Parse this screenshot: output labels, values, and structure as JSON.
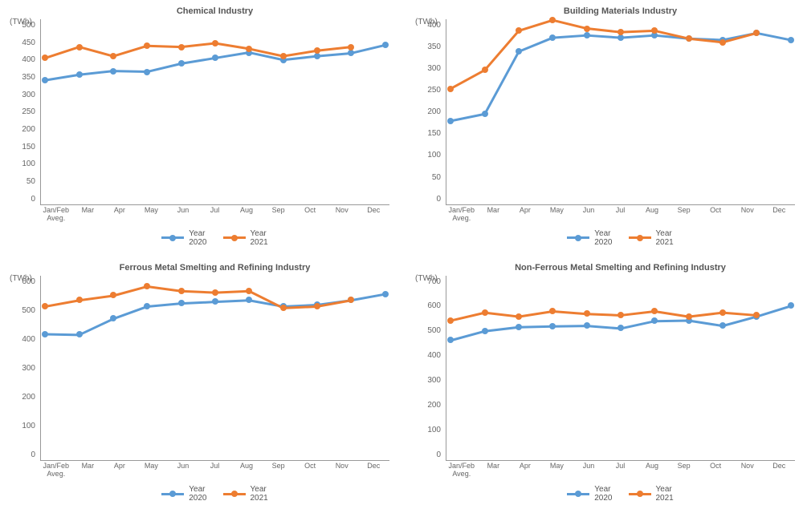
{
  "colors": {
    "series2020": "#5b9bd5",
    "series2021": "#ed7d31",
    "axis": "#999999",
    "text": "#666666",
    "bg": "#ffffff"
  },
  "lineWidth": 3,
  "markerRadius": 4,
  "fontSizes": {
    "title": 11,
    "axis": 10,
    "tick": 9,
    "legend": 10
  },
  "categories": [
    "Jan/Feb\nAveg.",
    "Mar",
    "Apr",
    "May",
    "Jun",
    "Jul",
    "Aug",
    "Sep",
    "Oct",
    "Nov",
    "Dec"
  ],
  "legendLabels": {
    "s2020": "Year\n2020",
    "s2021": "Year\n2021"
  },
  "yUnit": "(TWh)",
  "charts": [
    {
      "title": "Chemical Industry",
      "ymin": 0,
      "ymax": 500,
      "ystep": 50,
      "series": {
        "s2020": [
          335,
          350,
          360,
          358,
          380,
          395,
          410,
          390,
          400,
          408,
          430
        ],
        "s2021": [
          395,
          425,
          400,
          428,
          425,
          435,
          420,
          400,
          415,
          425,
          null
        ]
      }
    },
    {
      "title": "Building Materials Industry",
      "ymin": 0,
      "ymax": 400,
      "ystep": 50,
      "series": {
        "s2020": [
          180,
          195,
          330,
          360,
          365,
          360,
          365,
          358,
          355,
          370,
          355
        ],
        "s2021": [
          250,
          290,
          375,
          398,
          380,
          372,
          375,
          358,
          350,
          370,
          null
        ]
      }
    },
    {
      "title": "Ferrous Metal Smelting and Refining Industry",
      "ymin": 0,
      "ymax": 600,
      "ystep": 100,
      "series": {
        "s2020": [
          410,
          408,
          460,
          500,
          510,
          515,
          520,
          500,
          505,
          520,
          540
        ],
        "s2021": [
          500,
          520,
          535,
          565,
          550,
          545,
          550,
          495,
          500,
          520,
          null
        ]
      }
    },
    {
      "title": "Non-Ferrous Metal Smelting and Refining Industry",
      "ymin": 0,
      "ymax": 700,
      "ystep": 100,
      "series": {
        "s2020": [
          455,
          490,
          505,
          508,
          510,
          500,
          528,
          530,
          510,
          545,
          585
        ],
        "s2021": [
          530,
          560,
          545,
          565,
          555,
          550,
          565,
          545,
          560,
          550,
          null
        ]
      }
    }
  ]
}
